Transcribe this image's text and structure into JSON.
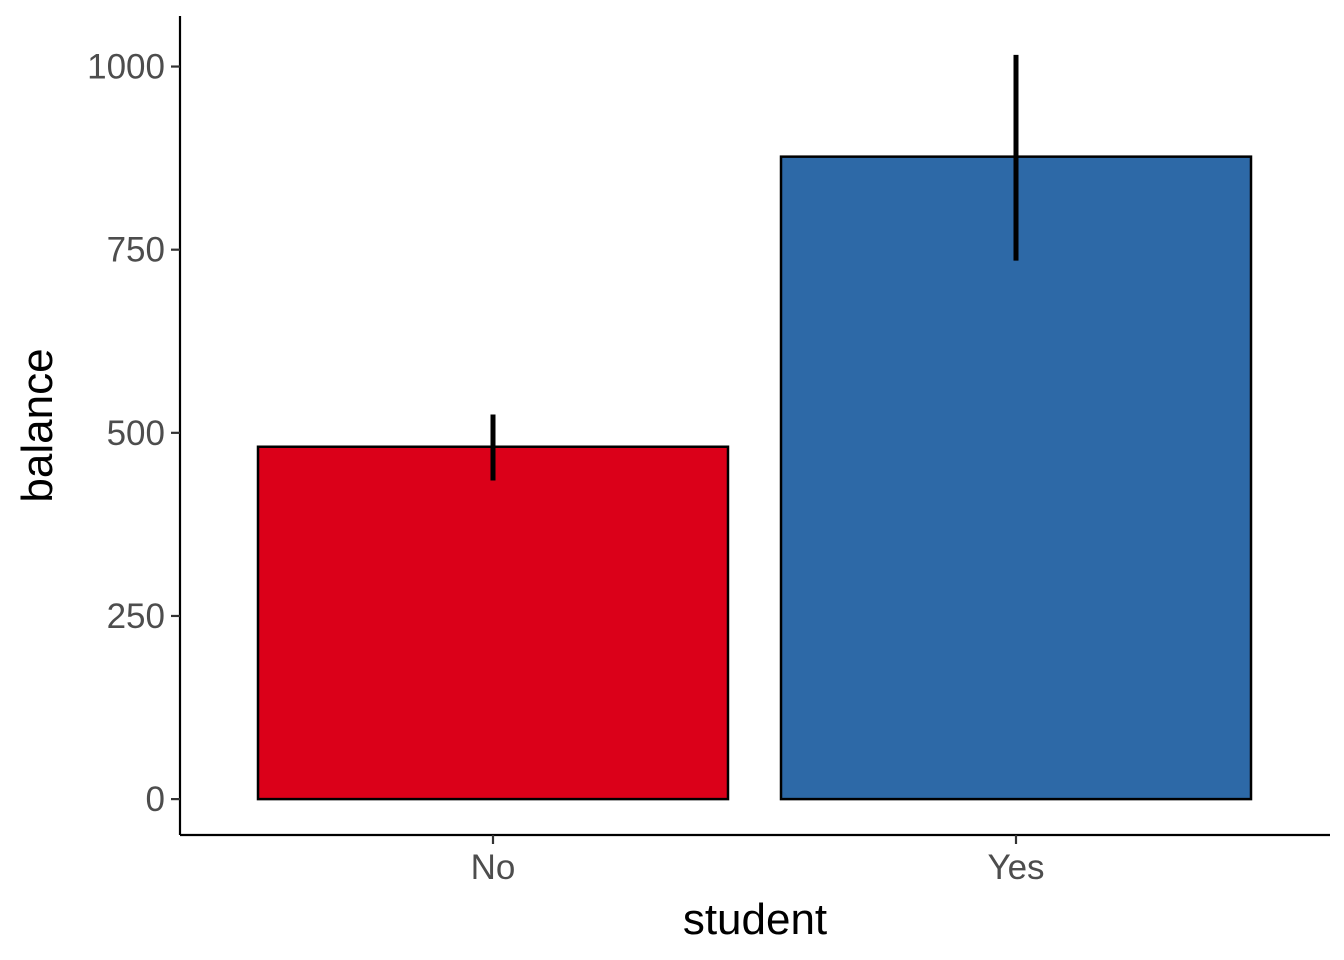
{
  "chart_data": {
    "type": "bar",
    "title": "",
    "xlabel": "student",
    "ylabel": "balance",
    "categories": [
      "No",
      "Yes"
    ],
    "values": [
      481,
      877
    ],
    "error_low": [
      435,
      735
    ],
    "error_high": [
      525,
      1016
    ],
    "ylim": [
      -49,
      1069
    ],
    "yticks": [
      0,
      250,
      500,
      750,
      1000
    ],
    "grid": false,
    "legend": "none",
    "colors": [
      "#db0019",
      "#2d69a7"
    ],
    "bar_edge_color": "#000000",
    "errorbar_color": "#000000"
  }
}
